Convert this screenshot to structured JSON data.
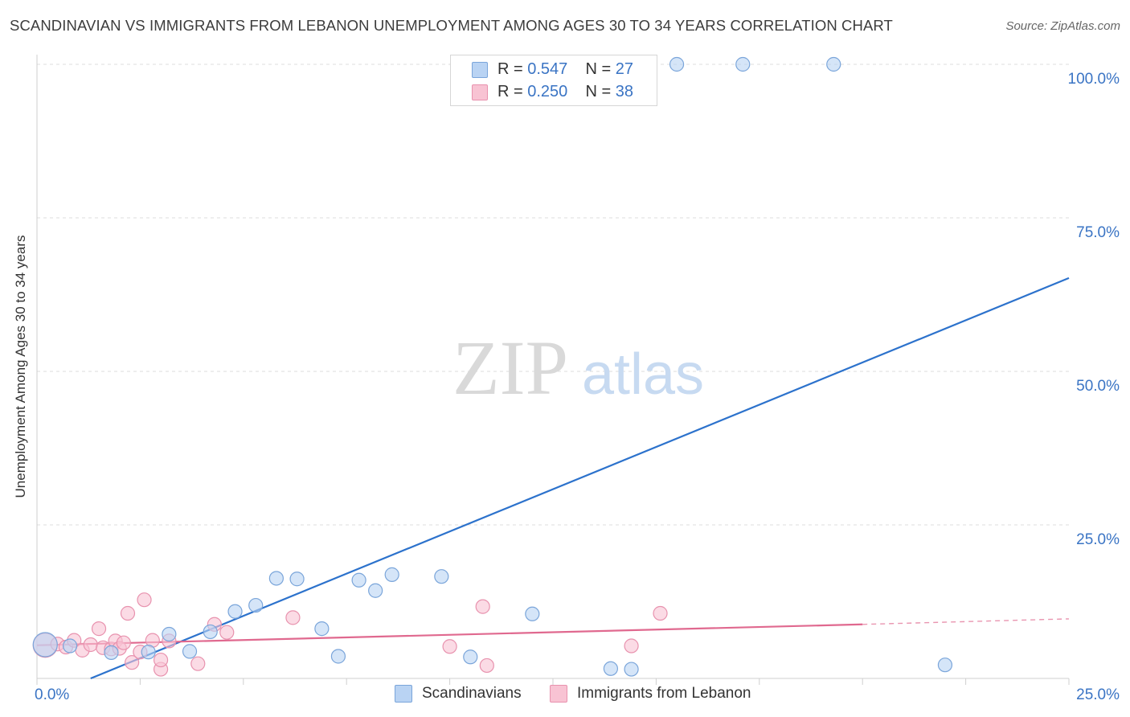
{
  "header": {
    "title": "SCANDINAVIAN VS IMMIGRANTS FROM LEBANON UNEMPLOYMENT AMONG AGES 30 TO 34 YEARS CORRELATION CHART",
    "source": "Source: ZipAtlas.com"
  },
  "watermark": {
    "zip": "ZIP",
    "atlas": "atlas"
  },
  "legend_top": {
    "r_label": "R = ",
    "n_label": "N = ",
    "rows": [
      {
        "r": "0.547",
        "n": "27"
      },
      {
        "r": "0.250",
        "n": "38"
      }
    ]
  },
  "colors": {
    "blue_fill": "#b9d3f3",
    "blue_stroke": "#7aa5da",
    "blue_line": "#2c72cc",
    "pink_fill": "#f8c3d3",
    "pink_stroke": "#e892ae",
    "pink_line": "#e0698f",
    "tick_text": "#3a74c4",
    "grid": "#dddddd"
  },
  "chart_data": {
    "type": "scatter",
    "title": "SCANDINAVIAN VS IMMIGRANTS FROM LEBANON UNEMPLOYMENT AMONG AGES 30 TO 34 YEARS CORRELATION CHART",
    "xlabel": "",
    "ylabel": "Unemployment Among Ages 30 to 34 years",
    "xlim": [
      0,
      25
    ],
    "ylim": [
      0,
      100
    ],
    "x_tick_labels": [
      "0.0%",
      "25.0%"
    ],
    "y_ticks": [
      {
        "value": 25,
        "label": "25.0%"
      },
      {
        "value": 50,
        "label": "50.0%"
      },
      {
        "value": 75,
        "label": "75.0%"
      },
      {
        "value": 100,
        "label": "100.0%"
      }
    ],
    "legend_position": "top-center",
    "series": [
      {
        "name": "Scandinavians",
        "color": "#b9d3f3",
        "points": [
          {
            "x": 0.2,
            "y": 5.5,
            "big": true
          },
          {
            "x": 0.8,
            "y": 5.3
          },
          {
            "x": 1.8,
            "y": 4.2
          },
          {
            "x": 2.7,
            "y": 4.3
          },
          {
            "x": 3.2,
            "y": 7.2
          },
          {
            "x": 3.7,
            "y": 4.4
          },
          {
            "x": 4.2,
            "y": 7.6
          },
          {
            "x": 4.8,
            "y": 10.9
          },
          {
            "x": 5.3,
            "y": 11.9
          },
          {
            "x": 5.8,
            "y": 16.3
          },
          {
            "x": 6.3,
            "y": 16.2
          },
          {
            "x": 6.9,
            "y": 8.1
          },
          {
            "x": 7.3,
            "y": 3.6
          },
          {
            "x": 7.8,
            "y": 16.0
          },
          {
            "x": 8.2,
            "y": 14.3
          },
          {
            "x": 8.6,
            "y": 16.9
          },
          {
            "x": 9.8,
            "y": 16.6
          },
          {
            "x": 10.5,
            "y": 3.5
          },
          {
            "x": 12.0,
            "y": 10.5
          },
          {
            "x": 13.9,
            "y": 1.6
          },
          {
            "x": 14.4,
            "y": 1.5
          },
          {
            "x": 15.5,
            "y": 100.0
          },
          {
            "x": 17.1,
            "y": 100.0
          },
          {
            "x": 19.3,
            "y": 100.0
          },
          {
            "x": 22.0,
            "y": 2.2
          }
        ],
        "trend": {
          "x0": 1.3,
          "y0": 0,
          "x1": 25,
          "y1": 65.2
        }
      },
      {
        "name": "Immigrants from Lebanon",
        "color": "#f8c3d3",
        "points": [
          {
            "x": 0.2,
            "y": 5.4,
            "big": true
          },
          {
            "x": 0.5,
            "y": 5.6
          },
          {
            "x": 0.7,
            "y": 5.1
          },
          {
            "x": 0.9,
            "y": 6.2
          },
          {
            "x": 1.1,
            "y": 4.6
          },
          {
            "x": 1.3,
            "y": 5.5
          },
          {
            "x": 1.5,
            "y": 8.1
          },
          {
            "x": 1.6,
            "y": 5.0
          },
          {
            "x": 1.8,
            "y": 4.8
          },
          {
            "x": 1.9,
            "y": 6.1
          },
          {
            "x": 2.0,
            "y": 4.9
          },
          {
            "x": 2.1,
            "y": 5.8
          },
          {
            "x": 2.2,
            "y": 10.6
          },
          {
            "x": 2.3,
            "y": 2.6
          },
          {
            "x": 2.5,
            "y": 4.3
          },
          {
            "x": 2.6,
            "y": 12.8
          },
          {
            "x": 2.8,
            "y": 6.2
          },
          {
            "x": 3.0,
            "y": 1.5
          },
          {
            "x": 3.2,
            "y": 6.1
          },
          {
            "x": 3.0,
            "y": 3.0
          },
          {
            "x": 3.9,
            "y": 2.4
          },
          {
            "x": 4.3,
            "y": 8.8
          },
          {
            "x": 4.6,
            "y": 7.5
          },
          {
            "x": 6.2,
            "y": 9.9
          },
          {
            "x": 10.0,
            "y": 5.2
          },
          {
            "x": 10.8,
            "y": 11.7
          },
          {
            "x": 10.9,
            "y": 2.1
          },
          {
            "x": 14.4,
            "y": 5.3
          },
          {
            "x": 15.1,
            "y": 10.6
          }
        ],
        "trend": {
          "x0": 0,
          "y0": 5.4,
          "x1": 20,
          "y1": 8.8,
          "dash_to_x": 25,
          "dash_to_y": 9.7
        }
      }
    ]
  },
  "legend_bottom": {
    "items": [
      {
        "label": "Scandinavians"
      },
      {
        "label": "Immigrants from Lebanon"
      }
    ]
  }
}
